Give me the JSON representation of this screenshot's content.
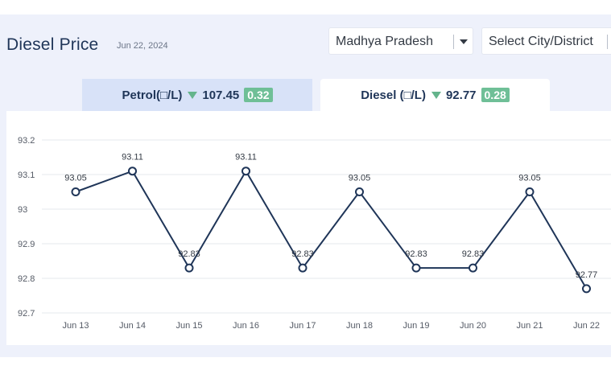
{
  "header": {
    "title": "Diesel Price",
    "date": "Jun 22, 2024"
  },
  "filters": {
    "state": "Madhya Pradesh",
    "city_placeholder": "Select City/District"
  },
  "tabs": [
    {
      "label": "Petrol(□/L)",
      "price": "107.45",
      "change": "0.32"
    },
    {
      "label": "Diesel (□/L)",
      "price": "92.77",
      "change": "0.28"
    }
  ],
  "colors": {
    "line": "#1f3558",
    "badge": "#6fbf97",
    "down_arrow": "#64b48c",
    "active_tab_bg": "#d8e2f8"
  },
  "chart_data": {
    "type": "line",
    "x": [
      "Jun 13",
      "Jun 14",
      "Jun 15",
      "Jun 16",
      "Jun 17",
      "Jun 18",
      "Jun 19",
      "Jun 20",
      "Jun 21",
      "Jun 22"
    ],
    "series": [
      {
        "values": [
          93.05,
          93.11,
          92.83,
          93.11,
          92.83,
          93.05,
          92.83,
          92.83,
          93.05,
          92.77
        ]
      }
    ],
    "point_labels": [
      "93.05",
      "93.11",
      "92.83",
      "93.11",
      "92.83",
      "93.05",
      "92.83",
      "92.83",
      "93.05",
      "92.77"
    ],
    "yticks": [
      "93.2",
      "93.1",
      "93",
      "92.9",
      "92.8",
      "92.7"
    ],
    "ylim": [
      92.7,
      93.2
    ],
    "grid": true
  }
}
